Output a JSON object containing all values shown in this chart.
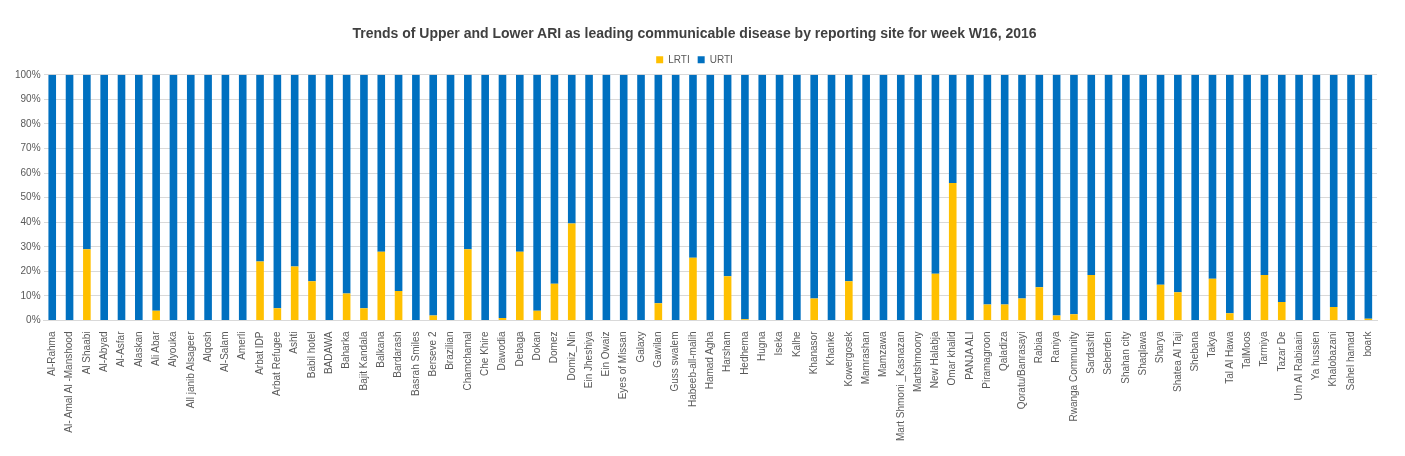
{
  "chart_data": {
    "type": "bar",
    "title": "Trends of Upper and Lower ARI as leading communicable disease by reporting site for week W16, 2016",
    "categories": [
      "Al-Rahma",
      "Al- Amal Al -Manshood",
      "Al Shaabi",
      "Al-Abyad",
      "Al-Asfar",
      "Alaskan",
      "Ali Abar",
      "Alyouka",
      "All janib Alsageer",
      "Alqosh",
      "Al-Salam",
      "Amerli",
      "Arbat IDP",
      "Arbat Refugee",
      "Ashti",
      "Babil hotel",
      "BADAWA",
      "Baharka",
      "Bajit Kandala",
      "Balkana",
      "Bardarash",
      "Basrah Smiles",
      "Berseve 2",
      "Brazilian",
      "Chamchamal",
      "Che Khire",
      "Dawodia",
      "Debaga",
      "Dokan",
      "Domez",
      "Domiz_Nin",
      "Ein Jheshiya",
      "Ein Owaiz",
      "Eyes of Missan",
      "Galaxy",
      "Gawilan",
      "Guss swalem",
      "Habeeb-all-malih",
      "Hamad Agha",
      "Harsham",
      "Hedhema",
      "Hugna",
      "Iseka",
      "Kalhe",
      "Khanasor",
      "Khanke",
      "Kowergosek",
      "Mamrashan",
      "Mamzawa",
      "Mart Shmoni _Kasnazan",
      "Martshmoony",
      "New Halabja",
      "Omar khalid",
      "PANJA ALI",
      "Piramagroon",
      "Qaladiza",
      "Qoratu/Banrasayi",
      "Rabiaa",
      "Raniya",
      "Rwanga Community",
      "Sardashti",
      "Seberden",
      "Shahan city",
      "Shaqlawa",
      "Sharya",
      "Shatea Al Taji",
      "Shebana",
      "Takya",
      "Tal Al Hawa",
      "TalMoos",
      "Tarmiya",
      "Tazar De",
      "Um Al Rabiaain",
      "Ya hussien",
      "Khalobazani",
      "Sahel hamad",
      "boark"
    ],
    "series": [
      {
        "name": "LRTI",
        "color": "#ffc000",
        "values": [
          0,
          0,
          29,
          0,
          0,
          0,
          4,
          0,
          0,
          0,
          0,
          0,
          24,
          5,
          22,
          16,
          0,
          11,
          5,
          28,
          12,
          0,
          2,
          0,
          29,
          0,
          1,
          28,
          4,
          15,
          39.5,
          0,
          0,
          0,
          0,
          7,
          0,
          25.5,
          0,
          18,
          0.5,
          0,
          0,
          0,
          9,
          0,
          16,
          0,
          0,
          0,
          0,
          19,
          56,
          0,
          6.5,
          6.5,
          9,
          13.5,
          2,
          2.5,
          18.5,
          0,
          0,
          0,
          14.5,
          11.5,
          0,
          17,
          3,
          0,
          18.5,
          7.5,
          0,
          0,
          5.5,
          0,
          0.7
        ]
      },
      {
        "name": "URTI",
        "color": "#0070c0",
        "values": [
          100,
          100,
          71,
          100,
          100,
          100,
          96,
          100,
          100,
          100,
          100,
          100,
          76,
          95,
          78,
          84,
          100,
          89,
          95,
          72,
          88,
          100,
          98,
          100,
          71,
          100,
          99,
          72,
          96,
          85,
          60.5,
          100,
          100,
          100,
          100,
          93,
          100,
          74.5,
          100,
          82,
          99.5,
          100,
          100,
          100,
          91,
          100,
          84,
          100,
          100,
          100,
          100,
          81,
          44,
          100,
          93.5,
          93.5,
          91,
          86.5,
          98,
          97.5,
          81.5,
          100,
          100,
          100,
          85.5,
          88.5,
          100,
          83,
          97,
          100,
          81.5,
          92.5,
          100,
          100,
          94.5,
          100,
          99.3
        ]
      }
    ],
    "stacked": true,
    "ylim": [
      0,
      100
    ],
    "yticks": [
      {
        "value": 0,
        "label": "0%"
      },
      {
        "value": 10,
        "label": "10%"
      },
      {
        "value": 20,
        "label": "20%"
      },
      {
        "value": 30,
        "label": "30%"
      },
      {
        "value": 40,
        "label": "40%"
      },
      {
        "value": 50,
        "label": "50%"
      },
      {
        "value": 60,
        "label": "60%"
      },
      {
        "value": 70,
        "label": "70%"
      },
      {
        "value": 80,
        "label": "80%"
      },
      {
        "value": 90,
        "label": "90%"
      },
      {
        "value": 100,
        "label": "100%"
      }
    ],
    "grid": "y",
    "legend": "top"
  }
}
